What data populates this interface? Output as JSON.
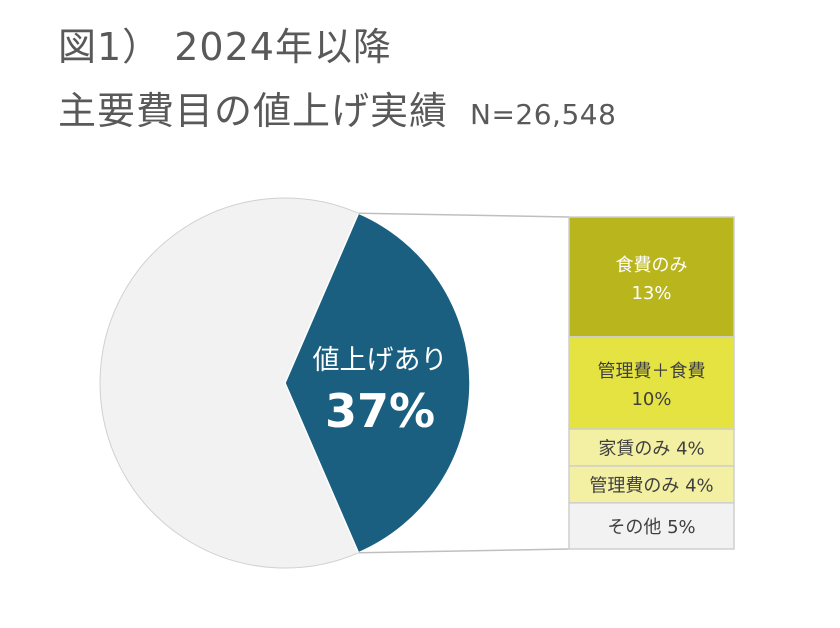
{
  "title": {
    "line1": "図1） 2024年以降",
    "line2": "主要費目の値上げ実績",
    "n": "N=26,548"
  },
  "chart_data": {
    "type": "bar-of-pie",
    "pie": {
      "highlight": {
        "label": "値上げあり",
        "value": "37%",
        "share": 0.37,
        "color": "#1a5f80"
      },
      "rest": {
        "share": 0.63,
        "color": "#f2f2f2"
      }
    },
    "breakdown": [
      {
        "label": "食費のみ",
        "value": "13%",
        "share": 13,
        "color": "#b9b51d",
        "text_color": "#ffffff",
        "inline": false
      },
      {
        "label": "管理費＋食費",
        "value": "10%",
        "share": 10,
        "color": "#e4e342",
        "text_color": "#404040",
        "inline": false
      },
      {
        "label": "家賃のみ",
        "value": "4%",
        "share": 4,
        "color": "#f3f0a3",
        "text_color": "#404040",
        "inline": true
      },
      {
        "label": "管理費のみ",
        "value": "4%",
        "share": 4,
        "color": "#f3f0a3",
        "text_color": "#404040",
        "inline": true
      },
      {
        "label": "その他",
        "value": "5%",
        "share": 5,
        "color": "#f2f2f2",
        "text_color": "#404040",
        "inline": true
      }
    ]
  }
}
